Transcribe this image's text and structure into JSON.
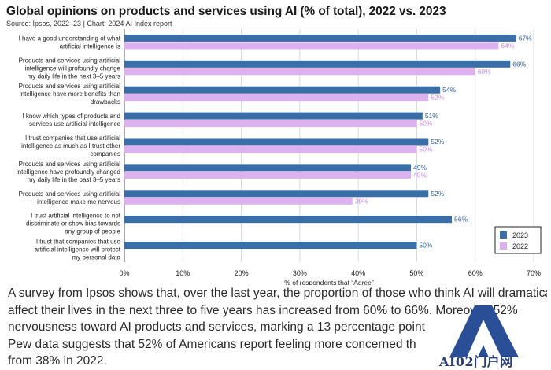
{
  "chart_data": {
    "type": "bar",
    "orientation": "horizontal",
    "title": "Global opinions on products and services using AI (% of total), 2022 vs. 2023",
    "subtitle": "Source: Ipsos, 2022–23 | Chart: 2024 AI Index report",
    "xlabel": "% of respondents that “Agree”",
    "xlim": [
      0,
      70
    ],
    "xticks": [
      "0%",
      "10%",
      "20%",
      "30%",
      "40%",
      "50%",
      "60%",
      "70%"
    ],
    "categories": [
      [
        "I have a good understanding of what",
        "artificial intelligence is"
      ],
      [
        "Products and services using artificial",
        "intelligence will profoundly change",
        "my daily life in the next 3–5 years"
      ],
      [
        "Products and services using artificial",
        "intelligence have more benefits than",
        "drawbacks"
      ],
      [
        "I know which types of products and",
        "services use artificial intelligence"
      ],
      [
        "I trust companies that use artificial",
        "intelligence as much as I trust other",
        "companies"
      ],
      [
        "Products and services using artificial",
        "intelligence have profoundly changed",
        "my daily life in the past 3–5 years"
      ],
      [
        "Products and services using artificial",
        "intelligence make me nervous"
      ],
      [
        "I trust artificial intelligence to not",
        "discriminate or show bias towards",
        "any group of people"
      ],
      [
        "I trust that companies that use",
        "artificial intelligence will protect",
        "my personal data"
      ]
    ],
    "series": [
      {
        "name": "2023",
        "color": "#3a6ea8",
        "label_color": "#2f5f98",
        "values": [
          67,
          66,
          54,
          51,
          52,
          49,
          52,
          56,
          50
        ],
        "labels": [
          "67%",
          "66%",
          "54%",
          "51%",
          "52%",
          "49%",
          "52%",
          "56%",
          "50%"
        ]
      },
      {
        "name": "2022",
        "color": "#ddb0ef",
        "label_color": "#c48ade",
        "values": [
          64,
          60,
          52,
          50,
          50,
          49,
          39,
          null,
          null
        ],
        "labels": [
          "64%",
          "60%",
          "52%",
          "50%",
          "50%",
          "49%",
          "39%",
          null,
          null
        ]
      }
    ],
    "legend": [
      "2023",
      "2022"
    ],
    "legend_position": "bottom-right",
    "grid": "vertical"
  },
  "caption": [
    "A survey from Ipsos shows that, over the last year, the proportion of those who think AI will dramatically",
    "affect their lives in the next three to five years has increased from 60% to 66%. Moreover, 52%",
    "nervousness toward AI products and services, marking a 13 percentage point",
    "Pew data suggests that 52% of Americans report feeling more concerned th",
    "from 38% in 2022."
  ],
  "watermark": {
    "text": "AI02门户网"
  }
}
